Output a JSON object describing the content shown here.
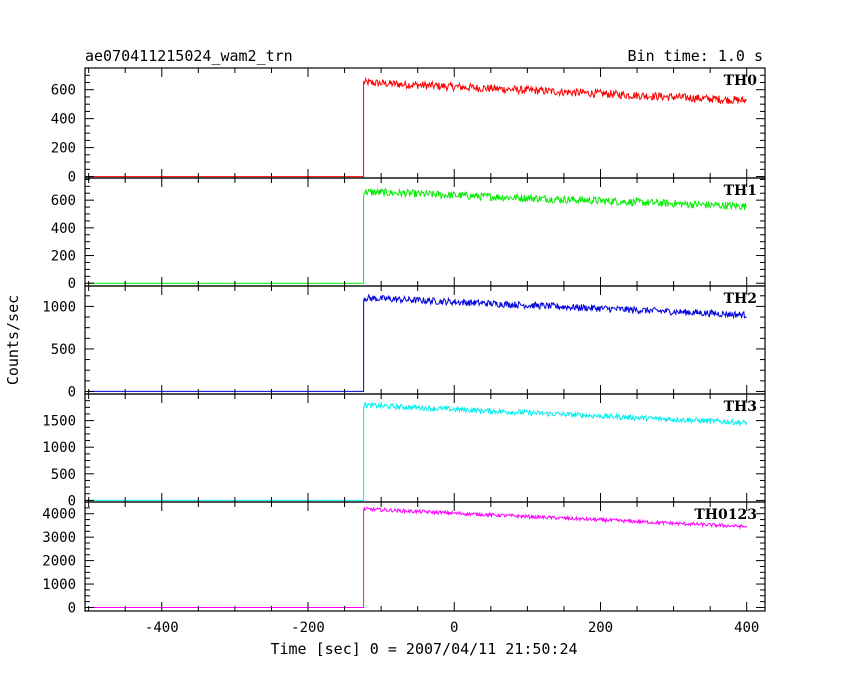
{
  "header": {
    "left_title": "ae070411215024_wam2_trn",
    "right_title": "Bin time: 1.0 s"
  },
  "chart_data": {
    "type": "line",
    "xlabel": "Time [sec] 0 = 2007/04/11 21:50:24",
    "ylabel": "Counts/sec",
    "xlim": [
      -505,
      425
    ],
    "xticks": [
      -400,
      -200,
      0,
      200,
      400
    ],
    "grid": false,
    "panels": [
      {
        "name": "TH0",
        "color": "#ff0000",
        "ylim": [
          -10,
          750
        ],
        "yticks": [
          0,
          200,
          400,
          600
        ],
        "baseline": 0,
        "rise_time": -124,
        "peak": 650,
        "end_level": 525,
        "noise": 28
      },
      {
        "name": "TH1",
        "color": "#00ee00",
        "ylim": [
          -20,
          760
        ],
        "yticks": [
          0,
          200,
          400,
          600
        ],
        "baseline": 0,
        "rise_time": -124,
        "peak": 660,
        "end_level": 555,
        "noise": 28
      },
      {
        "name": "TH2",
        "color": "#0000dd",
        "ylim": [
          -30,
          1240
        ],
        "yticks": [
          0,
          500,
          1000
        ],
        "baseline": 0,
        "rise_time": -124,
        "peak": 1100,
        "end_level": 900,
        "noise": 40
      },
      {
        "name": "TH3",
        "color": "#00eeee",
        "ylim": [
          -30,
          2000
        ],
        "yticks": [
          0,
          500,
          1000,
          1500
        ],
        "baseline": 0,
        "rise_time": -124,
        "peak": 1790,
        "end_level": 1460,
        "noise": 50
      },
      {
        "name": "TH0123",
        "color": "#ff00ff",
        "ylim": [
          -150,
          4500
        ],
        "yticks": [
          0,
          1000,
          2000,
          3000,
          4000
        ],
        "baseline": 0,
        "rise_time": -124,
        "peak": 4200,
        "end_level": 3450,
        "noise": 75
      }
    ]
  }
}
